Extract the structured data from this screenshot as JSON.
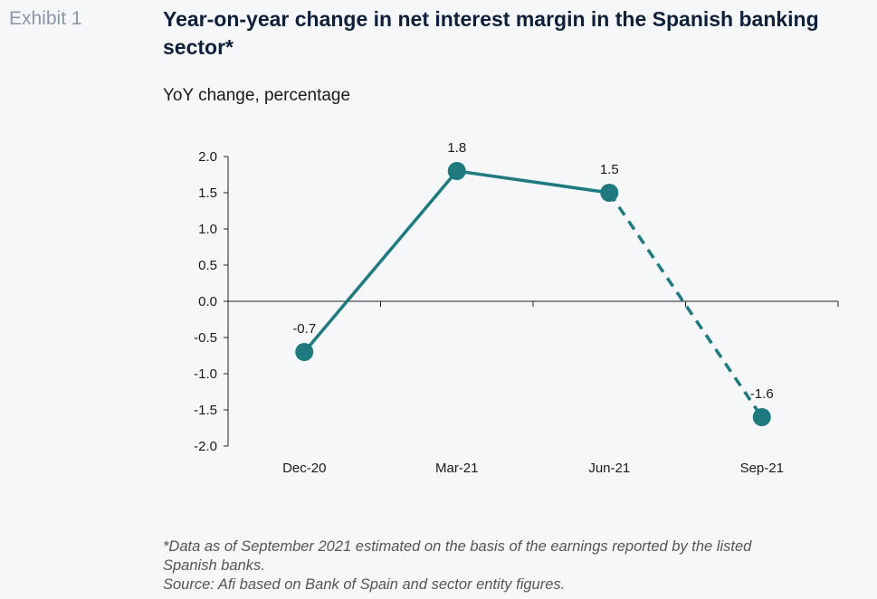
{
  "exhibit_label": "Exhibit 1",
  "title": "Year-on-year change in net interest margin in the Spanish banking sector*",
  "subtitle": "YoY change, percentage",
  "colors": {
    "series": "#1e7a7e",
    "axis": "#222222"
  },
  "chart_data": {
    "type": "line",
    "categories": [
      "Dec-20",
      "Mar-21",
      "Jun-21",
      "Sep-21"
    ],
    "series": [
      {
        "values": [
          -0.7,
          1.8,
          1.5,
          -1.6
        ],
        "data_labels": [
          "-0.7",
          "1.8",
          "1.5",
          "-1.6"
        ],
        "estimated_from_index": 2,
        "estimated_style": "dashed"
      }
    ],
    "ylim": [
      -2.0,
      2.0
    ],
    "yticks": [
      2.0,
      1.5,
      1.0,
      0.5,
      0.0,
      -0.5,
      -1.0,
      -1.5,
      -2.0
    ],
    "ytick_labels": [
      "2.0",
      "1.5",
      "1.0",
      "0.5",
      "0.0",
      "-0.5",
      "-1.0",
      "-1.5",
      "-2.0"
    ],
    "xlabel": "",
    "ylabel": "",
    "grid": false,
    "legend": "none"
  },
  "notes": {
    "footnote": "*Data as of September 2021 estimated on the basis of the earnings reported by the listed",
    "footnote_cont": "Spanish banks.",
    "source": "Source: Afi based on Bank of Spain and sector entity figures."
  }
}
